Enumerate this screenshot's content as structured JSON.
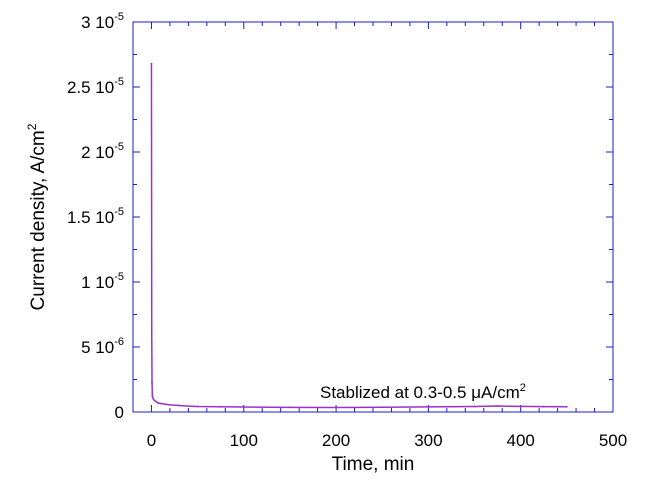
{
  "chart_data": {
    "type": "line",
    "xlabel": "Time, min",
    "ylabel": "Current density, A/cm",
    "ylabel_sup": "2",
    "xlim": [
      -20,
      500
    ],
    "ylim": [
      0,
      3e-05
    ],
    "x_ticks": [
      0,
      100,
      200,
      300,
      400,
      500
    ],
    "y_ticks": [
      {
        "value": 0,
        "mantissa": "0",
        "exp": ""
      },
      {
        "value": 5e-06,
        "mantissa": "5 10",
        "exp": "-6"
      },
      {
        "value": 1e-05,
        "mantissa": "1 10",
        "exp": "-5"
      },
      {
        "value": 1.5e-05,
        "mantissa": "1.5 10",
        "exp": "-5"
      },
      {
        "value": 2e-05,
        "mantissa": "2 10",
        "exp": "-5"
      },
      {
        "value": 2.5e-05,
        "mantissa": "2.5 10",
        "exp": "-5"
      },
      {
        "value": 3e-05,
        "mantissa": "3 10",
        "exp": "-5"
      }
    ],
    "annotation": {
      "text": "Stablized at 0.3-0.5 μA/cm",
      "sup": "2"
    },
    "series": [
      {
        "color": "#9933cc",
        "x": [
          0,
          0.3,
          0.6,
          1,
          2,
          3,
          5,
          7,
          10,
          15,
          20,
          30,
          40,
          50,
          75,
          100,
          150,
          200,
          250,
          300,
          350,
          375,
          400,
          425,
          450
        ],
        "y": [
          2.68e-05,
          6e-06,
          2.2e-06,
          1.2e-06,
          1e-06,
          9e-07,
          8e-07,
          7e-07,
          6.5e-07,
          6e-07,
          5.5e-07,
          5e-07,
          4.5e-07,
          4.2e-07,
          4e-07,
          3.8e-07,
          3.6e-07,
          3.5e-07,
          3.7e-07,
          3.9e-07,
          4.2e-07,
          4.6e-07,
          4.3e-07,
          4.1e-07,
          4e-07
        ]
      }
    ],
    "frame_color": "#1c1cc8",
    "grid": false
  }
}
